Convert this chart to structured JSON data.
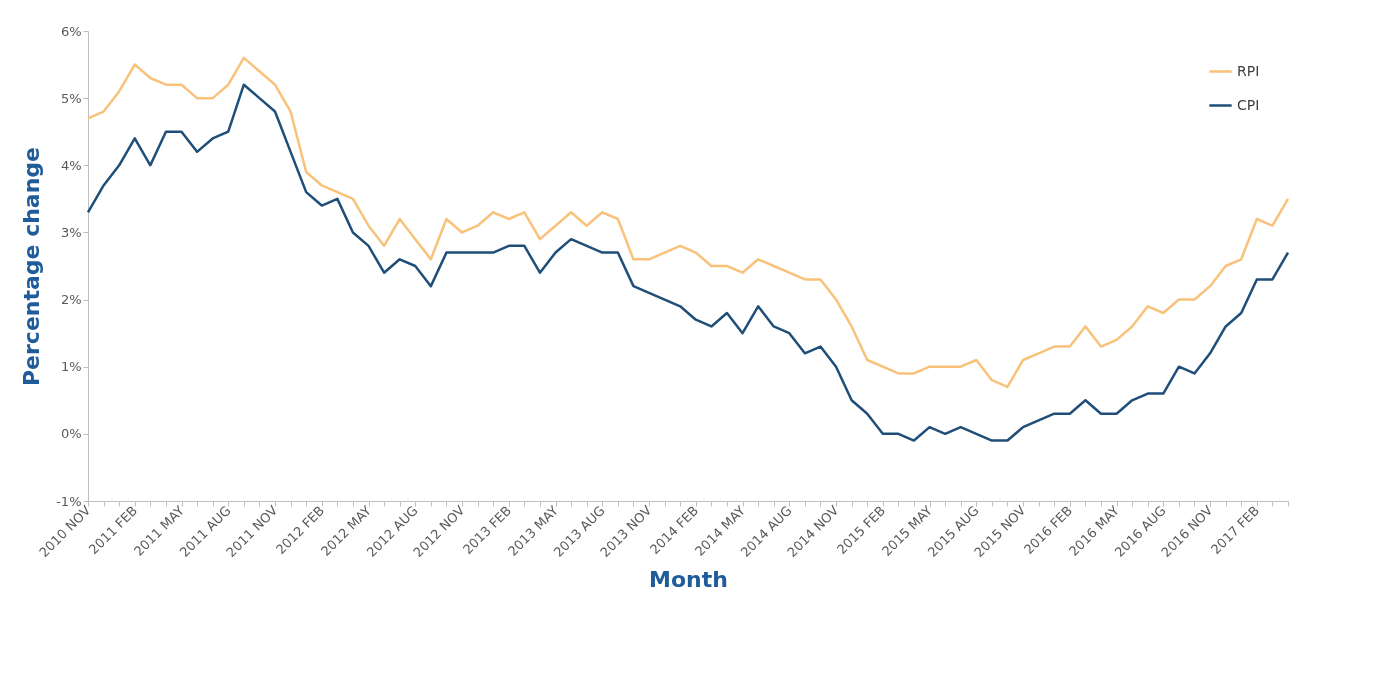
{
  "chart_data": {
    "type": "line",
    "xlabel": "Month",
    "ylabel": "Percentage change",
    "categories": [
      "2010 NOV",
      null,
      null,
      "2011 FEB",
      null,
      null,
      "2011 MAY",
      null,
      null,
      "2011 AUG",
      null,
      null,
      "2011 NOV",
      null,
      null,
      "2012 FEB",
      null,
      null,
      "2012 MAY",
      null,
      null,
      "2012 AUG",
      null,
      null,
      "2012 NOV",
      null,
      null,
      "2013 FEB",
      null,
      null,
      "2013 MAY",
      null,
      null,
      "2013 AUG",
      null,
      null,
      "2013 NOV",
      null,
      null,
      "2014 FEB",
      null,
      null,
      "2014 MAY",
      null,
      null,
      "2014 AUG",
      null,
      null,
      "2014 NOV",
      null,
      null,
      "2015 FEB",
      null,
      null,
      "2015 MAY",
      null,
      null,
      "2015 AUG",
      null,
      null,
      "2015 NOV",
      null,
      null,
      "2016 FEB",
      null,
      null,
      "2016 MAY",
      null,
      null,
      "2016 AUG",
      null,
      null,
      "2016 NOV",
      null,
      null,
      "2017 FEB",
      null,
      null
    ],
    "series": [
      {
        "name": "RPI",
        "color": "#f9c27a",
        "values": [
          4.7,
          4.8,
          5.1,
          5.5,
          5.3,
          5.2,
          5.2,
          5.0,
          5.0,
          5.2,
          5.6,
          5.4,
          5.2,
          4.8,
          3.9,
          3.7,
          3.6,
          3.5,
          3.1,
          2.8,
          3.2,
          2.9,
          2.6,
          3.2,
          3.0,
          3.1,
          3.3,
          3.2,
          3.3,
          2.9,
          3.1,
          3.3,
          3.1,
          3.3,
          3.2,
          2.6,
          2.6,
          2.7,
          2.8,
          2.7,
          2.5,
          2.5,
          2.4,
          2.6,
          2.5,
          2.4,
          2.3,
          2.3,
          2.0,
          1.6,
          1.1,
          1.0,
          0.9,
          0.9,
          1.0,
          1.0,
          1.0,
          1.1,
          0.8,
          0.7,
          1.1,
          1.2,
          1.3,
          1.3,
          1.6,
          1.3,
          1.4,
          1.6,
          1.9,
          1.8,
          2.0,
          2.0,
          2.2,
          2.5,
          2.6,
          3.2,
          3.1,
          3.5
        ]
      },
      {
        "name": "CPI",
        "color": "#1f4e79",
        "values": [
          3.3,
          3.7,
          4.0,
          4.4,
          4.0,
          4.5,
          4.5,
          4.2,
          4.4,
          4.5,
          5.2,
          5.0,
          4.8,
          4.2,
          3.6,
          3.4,
          3.5,
          3.0,
          2.8,
          2.4,
          2.6,
          2.5,
          2.2,
          2.7,
          2.7,
          2.7,
          2.7,
          2.8,
          2.8,
          2.4,
          2.7,
          2.9,
          2.8,
          2.7,
          2.7,
          2.2,
          2.1,
          2.0,
          1.9,
          1.7,
          1.6,
          1.8,
          1.5,
          1.9,
          1.6,
          1.5,
          1.2,
          1.3,
          1.0,
          0.5,
          0.3,
          0.0,
          0.0,
          -0.1,
          0.1,
          0.0,
          0.1,
          0.0,
          -0.1,
          -0.1,
          0.1,
          0.2,
          0.3,
          0.3,
          0.5,
          0.3,
          0.3,
          0.5,
          0.6,
          0.6,
          1.0,
          0.9,
          1.2,
          1.6,
          1.8,
          2.3,
          2.3,
          2.7
        ]
      }
    ],
    "ylim": [
      -1,
      6
    ],
    "yticks": [
      {
        "value": -1,
        "label": "-1%"
      },
      {
        "value": 0,
        "label": "0%"
      },
      {
        "value": 1,
        "label": "1%"
      },
      {
        "value": 2,
        "label": "2%"
      },
      {
        "value": 3,
        "label": "3%"
      },
      {
        "value": 4,
        "label": "4%"
      },
      {
        "value": 5,
        "label": "5%"
      },
      {
        "value": 6,
        "label": "6%"
      }
    ],
    "legend": "top right",
    "grid": false,
    "marker": "none",
    "line_style": "solid"
  }
}
